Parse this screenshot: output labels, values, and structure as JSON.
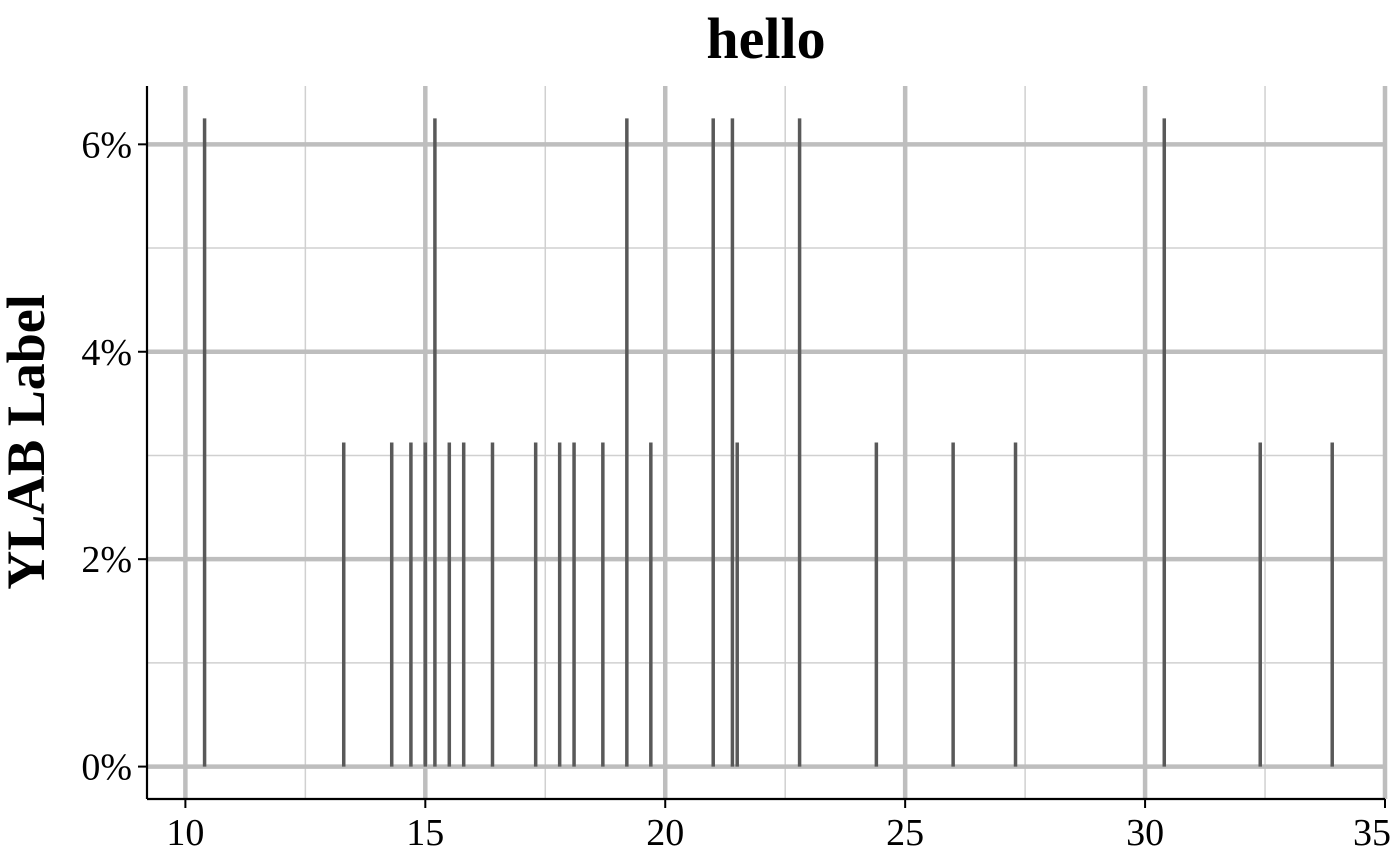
{
  "chart_data": {
    "type": "bar",
    "title": "hello",
    "xlabel": "",
    "ylabel": "YLAB Label",
    "xlim": [
      9.2,
      35.0
    ],
    "ylim": [
      -0.3125,
      6.5625
    ],
    "x_ticks": [
      10,
      15,
      20,
      25,
      30,
      35
    ],
    "x_tick_labels": [
      "10",
      "15",
      "20",
      "25",
      "30",
      "35"
    ],
    "y_ticks": [
      0,
      2,
      4,
      6
    ],
    "y_tick_labels": [
      "0%",
      "2%",
      "4%",
      "6%"
    ],
    "x_minor_ticks": [
      12.5,
      17.5,
      22.5,
      27.5,
      32.5
    ],
    "y_minor_ticks": [
      1,
      3,
      5
    ],
    "grid": true,
    "legend": "none",
    "bar_color": "#595959",
    "x": [
      10.4,
      13.3,
      14.3,
      14.7,
      15.0,
      15.2,
      15.5,
      15.8,
      16.4,
      17.3,
      17.8,
      18.1,
      18.7,
      19.2,
      19.7,
      21.0,
      21.4,
      21.5,
      22.8,
      24.4,
      26.0,
      27.3,
      30.4,
      32.4,
      33.9
    ],
    "values": [
      6.25,
      3.125,
      3.125,
      3.125,
      3.125,
      6.25,
      3.125,
      3.125,
      3.125,
      3.125,
      3.125,
      3.125,
      3.125,
      6.25,
      3.125,
      6.25,
      6.25,
      3.125,
      6.25,
      3.125,
      3.125,
      3.125,
      6.25,
      3.125,
      3.125
    ]
  }
}
